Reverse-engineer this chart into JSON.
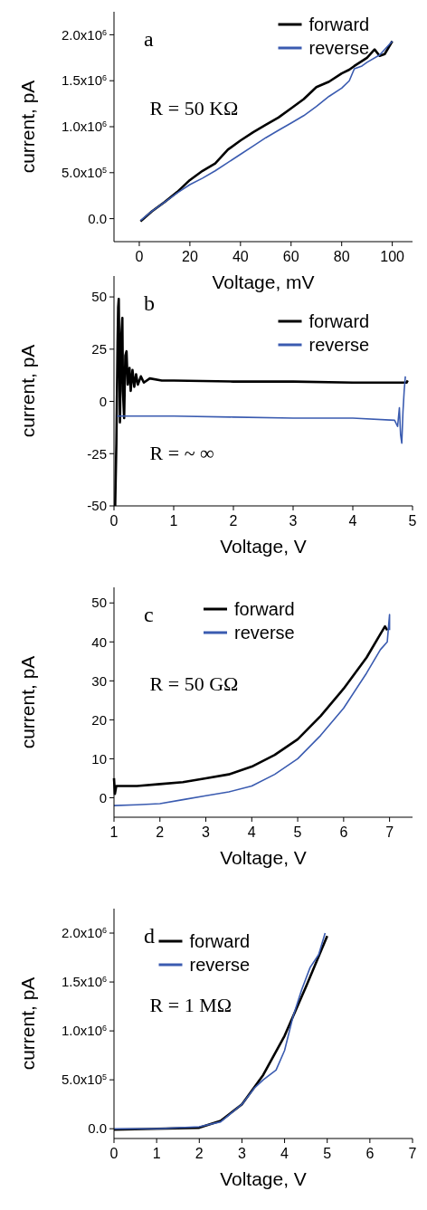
{
  "chart_data": [
    {
      "type": "line",
      "xlabel": "Voltage, mV",
      "ylabel": "current, pA",
      "annotations": [
        "a",
        "R = 50 KΩ"
      ],
      "legend": "top right",
      "xlim": [
        -10,
        108
      ],
      "xticks": [
        0,
        20,
        40,
        60,
        80,
        100
      ],
      "ylim": [
        -250000,
        2250000
      ],
      "yticks": [
        {
          "value": 0,
          "label": "0.0"
        },
        {
          "value": 500000,
          "label": "5.0x10$^{5}$"
        },
        {
          "value": 1000000,
          "label": "1.0x10$^{6}$"
        },
        {
          "value": 1500000,
          "label": "1.5x10$^{6}$"
        },
        {
          "value": 2000000,
          "label": "2.0x10$^{6}$"
        }
      ],
      "series": [
        {
          "name": "forward",
          "color": "#000000",
          "x": [
            0.5,
            5,
            10,
            15,
            20,
            25,
            30,
            35,
            40,
            45,
            50,
            55,
            60,
            65,
            70,
            75,
            80,
            83,
            85,
            90,
            93,
            95,
            97,
            100
          ],
          "values": [
            -30000,
            80000,
            180000,
            290000,
            420000,
            520000,
            600000,
            750000,
            850000,
            940000,
            1020000,
            1100000,
            1200000,
            1300000,
            1430000,
            1490000,
            1580000,
            1620000,
            1660000,
            1750000,
            1840000,
            1770000,
            1790000,
            1930000
          ]
        },
        {
          "name": "reverse",
          "color": "#3a5bb0",
          "x": [
            0.5,
            5,
            10,
            15,
            20,
            25,
            30,
            35,
            40,
            45,
            50,
            55,
            60,
            65,
            70,
            75,
            80,
            83,
            85,
            88,
            90,
            95,
            100
          ],
          "values": [
            -20000,
            80000,
            180000,
            280000,
            370000,
            440000,
            520000,
            610000,
            700000,
            790000,
            880000,
            960000,
            1040000,
            1120000,
            1220000,
            1330000,
            1420000,
            1500000,
            1630000,
            1660000,
            1700000,
            1780000,
            1930000
          ]
        }
      ]
    },
    {
      "type": "line",
      "xlabel": "Voltage, V",
      "ylabel": "current, pA",
      "annotations": [
        "b",
        "R = ~ ∞"
      ],
      "legend": "top right",
      "xlim": [
        0,
        5
      ],
      "xticks": [
        0,
        1,
        2,
        3,
        4,
        5
      ],
      "ylim": [
        -50,
        60
      ],
      "yticks": [
        -50,
        -25,
        0,
        25,
        50
      ],
      "series": [
        {
          "name": "forward",
          "color": "#000000",
          "x": [
            0.02,
            0.04,
            0.06,
            0.07,
            0.08,
            0.09,
            0.1,
            0.12,
            0.14,
            0.15,
            0.17,
            0.19,
            0.21,
            0.23,
            0.26,
            0.28,
            0.31,
            0.34,
            0.37,
            0.4,
            0.45,
            0.5,
            0.6,
            0.8,
            1,
            2,
            3,
            4,
            4.9,
            4.92
          ],
          "values": [
            -50,
            -20,
            28,
            45,
            49,
            20,
            -10,
            30,
            40,
            5,
            -8,
            22,
            24,
            8,
            16,
            5,
            15,
            7,
            13,
            8,
            12,
            9,
            11,
            10,
            10,
            9.5,
            9.5,
            9,
            9,
            10
          ]
        },
        {
          "name": "reverse",
          "color": "#3a5bb0",
          "x": [
            0.05,
            1,
            2,
            3,
            4,
            4.7,
            4.75,
            4.78,
            4.8,
            4.82,
            4.84,
            4.86,
            4.88
          ],
          "values": [
            -7,
            -7,
            -7.5,
            -8,
            -8,
            -9,
            -12,
            -3,
            -16,
            -20,
            -5,
            5,
            12
          ]
        }
      ]
    },
    {
      "type": "line",
      "xlabel": "Voltage, V",
      "ylabel": "current, pA",
      "annotations": [
        "c",
        "R = 50 GΩ"
      ],
      "legend": "top",
      "xlim": [
        1,
        7.5
      ],
      "xticks": [
        1,
        2,
        3,
        4,
        5,
        6,
        7
      ],
      "ylim": [
        -5,
        54
      ],
      "yticks": [
        0,
        10,
        20,
        30,
        40,
        50
      ],
      "series": [
        {
          "name": "forward",
          "color": "#000000",
          "x": [
            1,
            1.02,
            1.05,
            1.5,
            2,
            2.5,
            3,
            3.5,
            4,
            4.5,
            5,
            5.5,
            6,
            6.5,
            6.8,
            6.9,
            6.95
          ],
          "values": [
            5,
            1,
            3,
            3,
            3.5,
            4,
            5,
            6,
            8,
            11,
            15,
            21,
            28,
            36,
            42,
            44,
            43
          ]
        },
        {
          "name": "reverse",
          "color": "#3a5bb0",
          "x": [
            1,
            1.5,
            2,
            2.5,
            3,
            3.5,
            4,
            4.5,
            5,
            5.5,
            6,
            6.5,
            6.8,
            6.95,
            7,
            7
          ],
          "values": [
            -2,
            -1.8,
            -1.5,
            -0.5,
            0.5,
            1.5,
            3,
            6,
            10,
            16,
            23,
            32,
            38,
            40,
            47,
            43
          ]
        }
      ]
    },
    {
      "type": "line",
      "xlabel": "Voltage, V",
      "ylabel": "current, pA",
      "annotations": [
        "d",
        "R = 1 MΩ"
      ],
      "legend": "top left",
      "xlim": [
        0,
        7
      ],
      "xticks": [
        0,
        1,
        2,
        3,
        4,
        5,
        6,
        7
      ],
      "ylim": [
        -100000,
        2250000
      ],
      "yticks": [
        {
          "value": 0,
          "label": "0.0"
        },
        {
          "value": 500000,
          "label": "5.0x10$^{5}$"
        },
        {
          "value": 1000000,
          "label": "1.0x10$^{6}$"
        },
        {
          "value": 1500000,
          "label": "1.5x10$^{6}$"
        },
        {
          "value": 2000000,
          "label": "2.0x10$^{6}$"
        }
      ],
      "series": [
        {
          "name": "forward",
          "color": "#000000",
          "x": [
            0,
            1,
            2,
            2.5,
            3,
            3.5,
            4,
            4.5,
            5
          ],
          "values": [
            -10000,
            0,
            10000,
            80000,
            250000,
            550000,
            950000,
            1450000,
            1970000
          ]
        },
        {
          "name": "reverse",
          "color": "#3a5bb0",
          "x": [
            0,
            1,
            2,
            2.5,
            3,
            3.3,
            3.5,
            3.8,
            4,
            4.2,
            4.4,
            4.6,
            4.8,
            4.95
          ],
          "values": [
            0,
            0,
            20000,
            70000,
            250000,
            420000,
            500000,
            600000,
            800000,
            1150000,
            1420000,
            1650000,
            1780000,
            2000000
          ]
        }
      ]
    }
  ]
}
